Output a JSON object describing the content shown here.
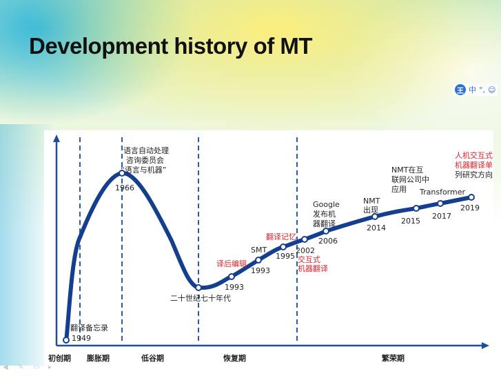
{
  "slide": {
    "title": "Development history of MT"
  },
  "ime_toolbar": {
    "badge": "王",
    "items": [
      "中",
      "°,",
      "☺"
    ]
  },
  "timeline": {
    "eras": [
      "初创期",
      "膨胀期",
      "低谷期",
      "恢复期",
      "繁荣期"
    ],
    "events": [
      {
        "year": "1949",
        "label_lines": [
          "翻译备忘录"
        ],
        "color": "#222222"
      },
      {
        "year": "1966",
        "label_lines": [
          "语言自动处理",
          "咨询委员会",
          "“语言与机器”"
        ],
        "color": "#222222"
      },
      {
        "year": "",
        "label_lines": [
          "二十世纪七十年代"
        ],
        "color": "#222222"
      },
      {
        "year": "1993",
        "label_lines": [
          "译后编辑"
        ],
        "color": "#d9242a"
      },
      {
        "year": "1993",
        "label_lines": [
          "SMT"
        ],
        "color": "#222222"
      },
      {
        "year": "1995",
        "label_lines": [
          "翻译记忆"
        ],
        "color": "#d9242a"
      },
      {
        "year": "2002",
        "label_lines": [
          "交互式",
          "机器翻译"
        ],
        "color": "#d9242a"
      },
      {
        "year": "2006",
        "label_lines": [
          "Google",
          "发布机",
          "器翻译"
        ],
        "color": "#222222"
      },
      {
        "year": "2014",
        "label_lines": [
          "NMT",
          "出现"
        ],
        "color": "#222222"
      },
      {
        "year": "2015",
        "label_lines": [
          "NMT在互",
          "联网公司中",
          "应用"
        ],
        "color": "#222222"
      },
      {
        "year": "2017",
        "label_lines": [
          "Transformer"
        ],
        "color": "#222222"
      },
      {
        "year": "2019",
        "label_lines": [
          "人机交互式",
          "机器翻译单",
          "列研究方向"
        ],
        "color": "#d9242a"
      }
    ],
    "colors": {
      "curve": "#143f8f",
      "axis": "#1d4e9e",
      "divider": "#2b5aa8"
    }
  },
  "footer_tools": [
    "prev-icon",
    "pen-icon",
    "slides-icon",
    "menu-icon"
  ]
}
